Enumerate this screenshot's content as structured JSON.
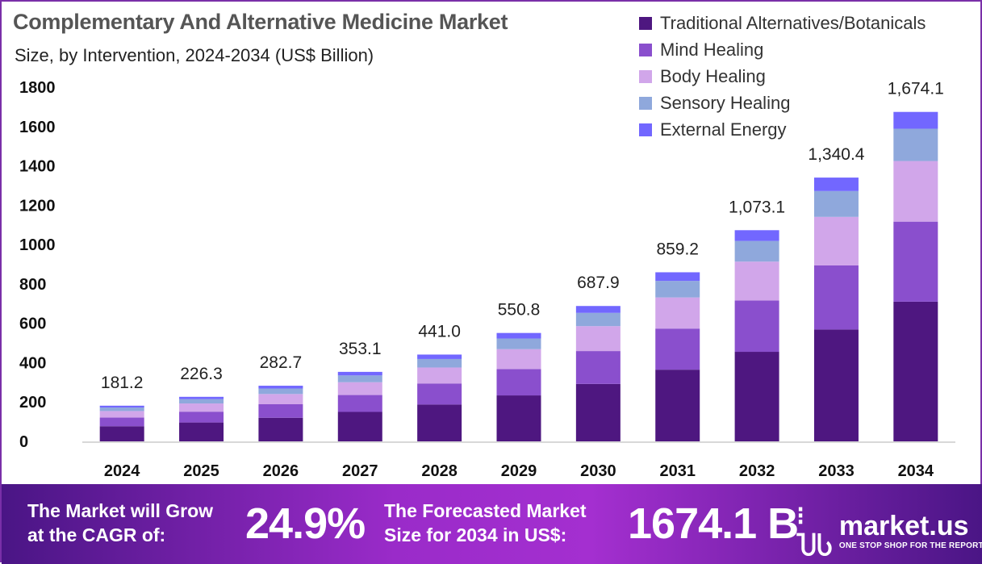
{
  "chart_data": {
    "type": "bar",
    "stacked": true,
    "title": "Complementary And Alternative Medicine Market",
    "subtitle": "Size, by Intervention, 2024-2034 (US$ Billion)",
    "categories": [
      "2024",
      "2025",
      "2026",
      "2027",
      "2028",
      "2029",
      "2030",
      "2031",
      "2032",
      "2033",
      "2034"
    ],
    "totals": [
      181.2,
      226.3,
      282.7,
      353.1,
      441.0,
      550.8,
      687.9,
      859.2,
      1073.1,
      1340.4,
      1674.1
    ],
    "total_labels": [
      "181.2",
      "226.3",
      "282.7",
      "353.1",
      "441.0",
      "550.8",
      "687.9",
      "859.2",
      "1,073.1",
      "1,340.4",
      "1,674.1"
    ],
    "series": [
      {
        "name": "Traditional Alternatives/Botanicals",
        "color": "#4e1780",
        "values": [
          76.8,
          95.9,
          119.9,
          149.7,
          187.0,
          233.5,
          291.7,
          364.3,
          455.0,
          568.3,
          709.8
        ]
      },
      {
        "name": "Mind Healing",
        "color": "#8a4fcd",
        "values": [
          44.0,
          55.0,
          68.7,
          85.8,
          107.2,
          133.8,
          167.2,
          208.8,
          260.8,
          325.7,
          406.8
        ]
      },
      {
        "name": "Body Healing",
        "color": "#d1a6ea",
        "values": [
          33.3,
          41.6,
          52.0,
          65.0,
          81.1,
          101.3,
          126.6,
          158.1,
          197.5,
          246.6,
          308.0
        ]
      },
      {
        "name": "Sensory Healing",
        "color": "#8fa8dc",
        "values": [
          17.8,
          22.2,
          27.7,
          34.6,
          43.2,
          54.0,
          67.4,
          84.2,
          105.2,
          131.4,
          164.1
        ]
      },
      {
        "name": "External Energy",
        "color": "#7267ff",
        "values": [
          9.3,
          11.6,
          14.4,
          18.0,
          22.5,
          28.2,
          35.0,
          43.8,
          54.6,
          68.4,
          85.4
        ]
      }
    ],
    "yticks": [
      0,
      200,
      400,
      600,
      800,
      1000,
      1200,
      1400,
      1600,
      1800
    ],
    "ylim": [
      0,
      1800
    ],
    "xlabel": "",
    "ylabel": "",
    "legend": "top-right",
    "grid": false
  },
  "footer": {
    "cagr_text_1": "The Market will Grow",
    "cagr_text_2": "at the CAGR of:",
    "cagr_value": "24.9%",
    "forecast_text_1": "The Forecasted Market",
    "forecast_text_2": "Size for 2034 in US$:",
    "forecast_value": "1674.1 B",
    "brand": "market.us",
    "brand_tagline": "ONE STOP SHOP FOR THE REPORTS"
  }
}
